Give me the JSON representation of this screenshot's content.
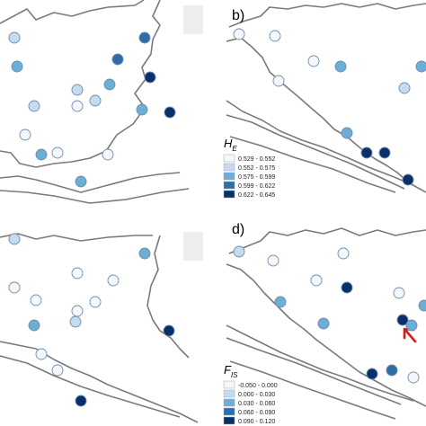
{
  "panels": [
    {
      "id": "a",
      "label": ""
    },
    {
      "id": "b",
      "label": "b)"
    },
    {
      "id": "c",
      "label": ""
    },
    {
      "id": "d",
      "label": "d)"
    }
  ],
  "legends": [
    {
      "panel": "b",
      "title_main": "H",
      "title_sub": "E",
      "items": [
        {
          "range": "0.529 - 0.552",
          "color": "#f4f8fc"
        },
        {
          "range": "0.552 - 0.575",
          "color": "#c6dbef"
        },
        {
          "range": "0.575 - 0.599",
          "color": "#6baed6"
        },
        {
          "range": "0.599 - 0.622",
          "color": "#2e6da8"
        },
        {
          "range": "0.622 - 0.645",
          "color": "#08306b"
        }
      ]
    },
    {
      "panel": "d",
      "title_main": "F",
      "title_sub": "IS",
      "items": [
        {
          "range": "-0.050 - 0.000",
          "color": "#f4f8fc"
        },
        {
          "range": "0.000 - 0.030",
          "color": "#c6dbef"
        },
        {
          "range": "0.030 - 0.060",
          "color": "#6baed6"
        },
        {
          "range": "0.060 - 0.090",
          "color": "#2e6da8"
        },
        {
          "range": "0.090 - 0.120",
          "color": "#08306b"
        }
      ]
    }
  ],
  "colors": {
    "coast": "#7a7a7a",
    "marker_stroke": "#6f8ca8",
    "arrow": "#d0201c",
    "divider": "#ffffff",
    "scale_box": "#eeeeee"
  },
  "highlight": {
    "panel": "d",
    "icon": "red-arrow-icon"
  }
}
